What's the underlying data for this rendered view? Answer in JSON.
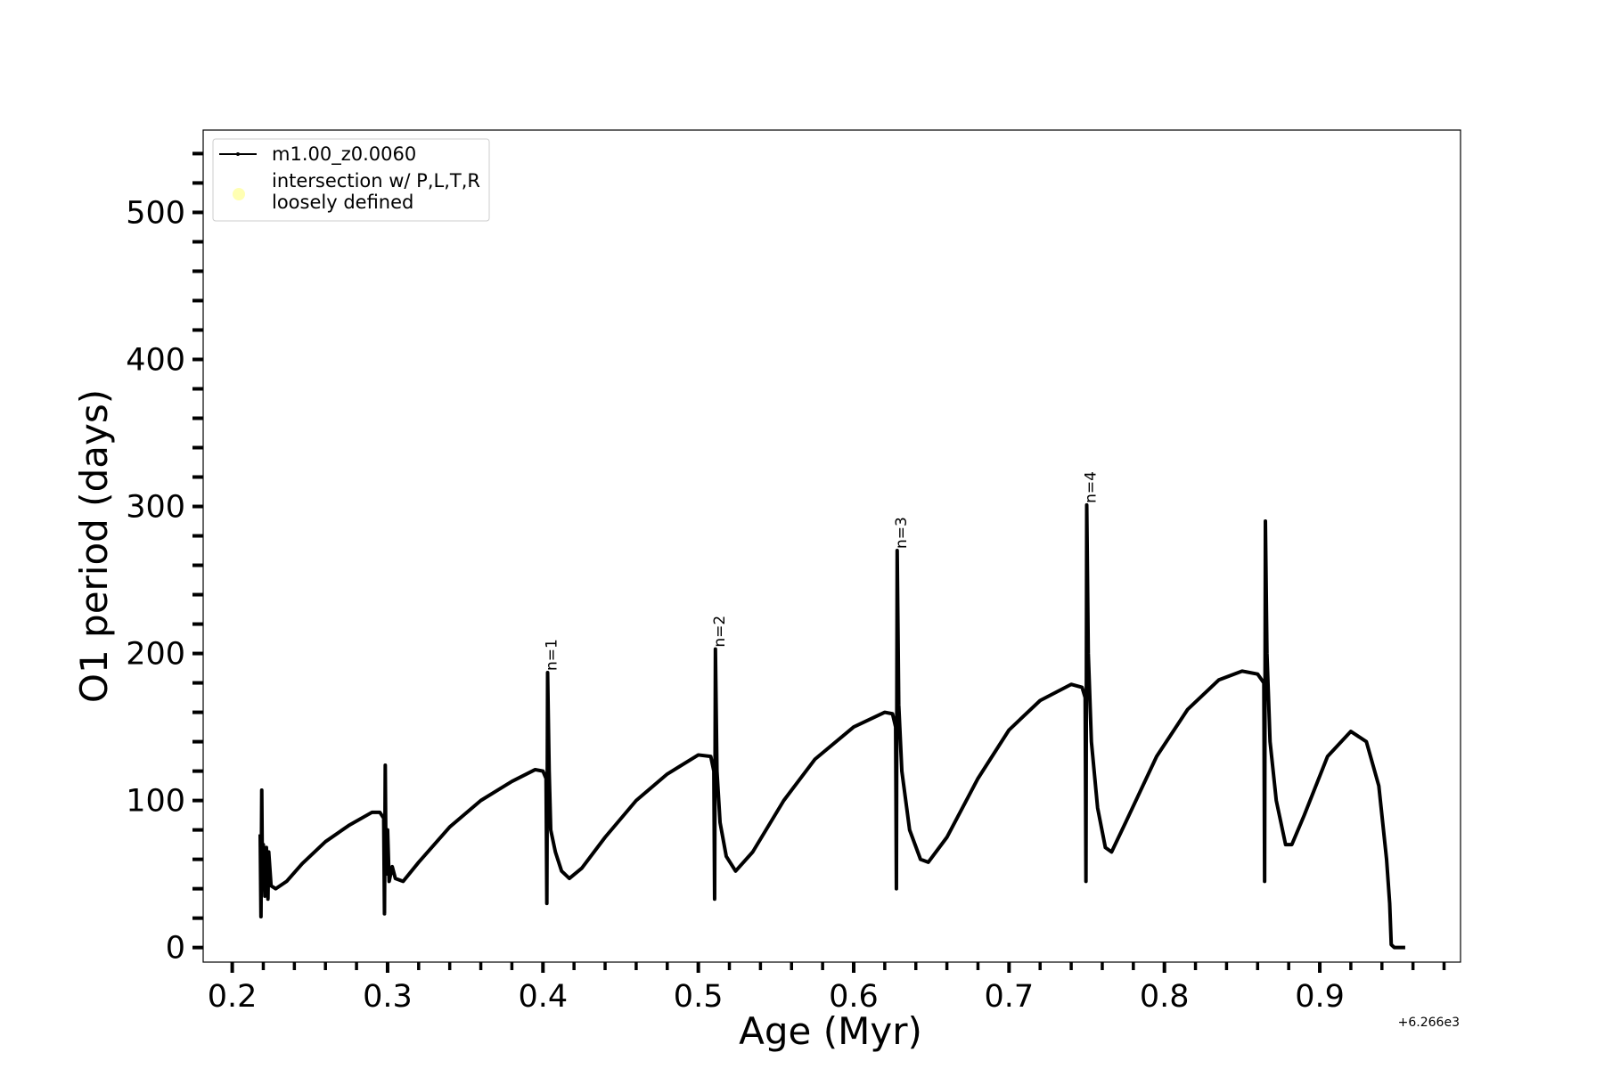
{
  "chart_data": {
    "type": "line",
    "xlabel": "Age (Myr)",
    "ylabel": "O1 period (days)",
    "x_offset_text": "+6.266e3",
    "xlim": [
      0.1813,
      0.9906
    ],
    "ylim": [
      -9.9,
      556
    ],
    "xticks": [
      0.2,
      0.3,
      0.4,
      0.5,
      0.6,
      0.7,
      0.8,
      0.9
    ],
    "xminorticks": [
      0.22,
      0.24,
      0.26,
      0.28,
      0.32,
      0.34,
      0.36,
      0.38,
      0.42,
      0.44,
      0.46,
      0.48,
      0.52,
      0.54,
      0.56,
      0.58,
      0.62,
      0.64,
      0.66,
      0.68,
      0.72,
      0.74,
      0.76,
      0.78,
      0.82,
      0.84,
      0.86,
      0.88,
      0.92,
      0.94,
      0.96,
      0.98
    ],
    "yticks": [
      0,
      100,
      200,
      300,
      400,
      500
    ],
    "yminorticks": [
      20,
      40,
      60,
      80,
      120,
      140,
      160,
      180,
      220,
      240,
      260,
      280,
      320,
      340,
      360,
      380,
      420,
      440,
      460,
      480,
      520,
      540
    ],
    "legend": "upper left",
    "series": [
      {
        "name": "m1.00_z0.0060",
        "color": "#000000",
        "x": [
          0.218,
          0.2185,
          0.219,
          0.2195,
          0.22,
          0.221,
          0.222,
          0.223,
          0.2235,
          0.225,
          0.228,
          0.235,
          0.245,
          0.26,
          0.275,
          0.29,
          0.295,
          0.2975,
          0.298,
          0.2985,
          0.299,
          0.3,
          0.301,
          0.303,
          0.305,
          0.31,
          0.32,
          0.34,
          0.36,
          0.38,
          0.395,
          0.4,
          0.402,
          0.4025,
          0.403,
          0.404,
          0.405,
          0.408,
          0.412,
          0.417,
          0.425,
          0.44,
          0.46,
          0.48,
          0.5,
          0.508,
          0.51,
          0.5105,
          0.511,
          0.512,
          0.514,
          0.518,
          0.524,
          0.535,
          0.555,
          0.575,
          0.6,
          0.62,
          0.625,
          0.627,
          0.6275,
          0.628,
          0.629,
          0.631,
          0.636,
          0.643,
          0.648,
          0.66,
          0.68,
          0.7,
          0.72,
          0.74,
          0.747,
          0.749,
          0.7495,
          0.75,
          0.751,
          0.753,
          0.757,
          0.762,
          0.766,
          0.775,
          0.795,
          0.815,
          0.835,
          0.85,
          0.86,
          0.864,
          0.8645,
          0.865,
          0.866,
          0.868,
          0.872,
          0.878,
          0.882,
          0.89,
          0.905,
          0.92,
          0.93,
          0.938,
          0.943,
          0.945,
          0.946,
          0.948,
          0.955
        ],
        "values": [
          77,
          21,
          107,
          40,
          70,
          35,
          68,
          33,
          65,
          42,
          40,
          45,
          57,
          72,
          83,
          92,
          92,
          88,
          23,
          124,
          50,
          80,
          45,
          55,
          47,
          45,
          58,
          82,
          100,
          113,
          121,
          120,
          115,
          30,
          187,
          120,
          80,
          65,
          52,
          47,
          54,
          75,
          100,
          118,
          131,
          130,
          120,
          33,
          203,
          120,
          85,
          62,
          52,
          65,
          100,
          128,
          150,
          160,
          159,
          150,
          40,
          270,
          165,
          120,
          80,
          60,
          58,
          75,
          115,
          148,
          168,
          179,
          177,
          170,
          45,
          301,
          200,
          140,
          95,
          68,
          65,
          85,
          130,
          162,
          182,
          188,
          186,
          180,
          45,
          290,
          200,
          140,
          100,
          70,
          70,
          90,
          130,
          147,
          140,
          110,
          60,
          30,
          2,
          0,
          0
        ]
      },
      {
        "name": "intersection w/ P,L,T,R\nloosely defined",
        "color": "#ffffb3",
        "x": [],
        "values": []
      }
    ],
    "annotations": [
      {
        "text": "n=1",
        "x": 0.403,
        "y": 187
      },
      {
        "text": "n=2",
        "x": 0.511,
        "y": 203
      },
      {
        "text": "n=3",
        "x": 0.628,
        "y": 270
      },
      {
        "text": "n=4",
        "x": 0.75,
        "y": 301
      }
    ]
  }
}
